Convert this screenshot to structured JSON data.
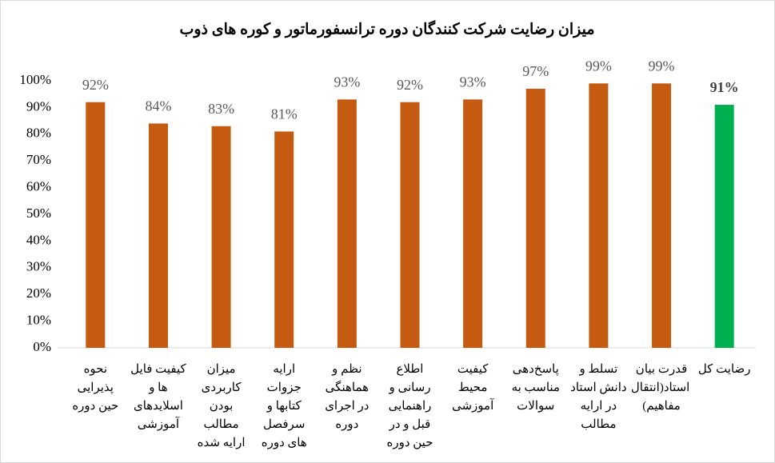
{
  "chart_data": {
    "type": "bar",
    "title": "میزان رضایت شرکت کنندگان دوره ترانسفورماتور و کوره های ذوب",
    "categories": [
      "نحوه پذیرایی حین دوره",
      "کیفیت فایل ها و اسلایدهای آموزشی",
      "میزان کاربردی بودن مطالب ارایه شده",
      "ارایه جزوات کتابها و سرفصل های دوره",
      "نظم و هماهنگی در اجرای دوره",
      "اطلاع رسانی و راهنمایی قبل و در حین دوره",
      "کیفیت محیط آموزشی",
      "پاسخ‌دهی مناسب به سوالات",
      "تسلط و دانش استاد در ارایه مطالب",
      "قدرت بیان استاد(انتقال مفاهیم)",
      "رضایت کل"
    ],
    "values": [
      92,
      84,
      83,
      81,
      93,
      92,
      93,
      97,
      99,
      99,
      91
    ],
    "value_labels": [
      "92%",
      "84%",
      "83%",
      "81%",
      "93%",
      "92%",
      "93%",
      "97%",
      "99%",
      "99%",
      "91%"
    ],
    "colors": [
      "#c55a11",
      "#c55a11",
      "#c55a11",
      "#c55a11",
      "#c55a11",
      "#c55a11",
      "#c55a11",
      "#c55a11",
      "#c55a11",
      "#c55a11",
      "#00b050"
    ],
    "ylim": [
      0,
      100
    ],
    "yticks": [
      {
        "value": 0,
        "label": "0%"
      },
      {
        "value": 10,
        "label": "10%"
      },
      {
        "value": 20,
        "label": "20%"
      },
      {
        "value": 30,
        "label": "30%"
      },
      {
        "value": 40,
        "label": "40%"
      },
      {
        "value": 50,
        "label": "50%"
      },
      {
        "value": 60,
        "label": "60%"
      },
      {
        "value": 70,
        "label": "70%"
      },
      {
        "value": 80,
        "label": "80%"
      },
      {
        "value": 90,
        "label": "90%"
      },
      {
        "value": 100,
        "label": "100%"
      }
    ],
    "grid": false
  }
}
